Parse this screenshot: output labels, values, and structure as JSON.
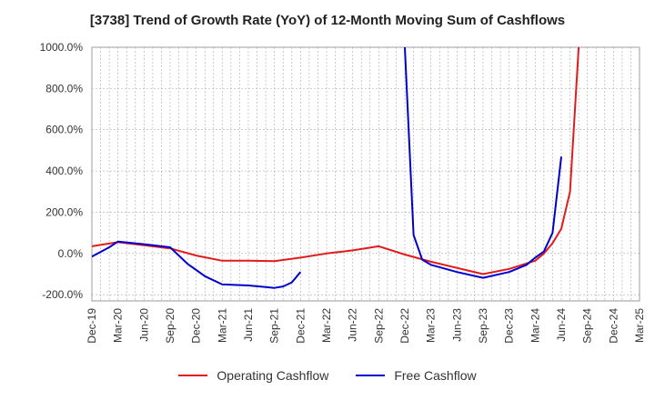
{
  "chart_data": {
    "type": "line",
    "title": "[3738]  Trend of Growth Rate (YoY) of 12-Month Moving Sum of Cashflows",
    "xlabel": "",
    "ylabel": "",
    "categories": [
      "Dec-19",
      "Mar-20",
      "Jun-20",
      "Sep-20",
      "Dec-20",
      "Mar-21",
      "Jun-21",
      "Sep-21",
      "Dec-21",
      "Mar-22",
      "Jun-22",
      "Sep-22",
      "Dec-22",
      "Mar-23",
      "Jun-23",
      "Sep-23",
      "Dec-23",
      "Mar-24",
      "Jun-24",
      "Sep-24",
      "Dec-24",
      "Mar-25"
    ],
    "ylim": [
      -230,
      1000
    ],
    "yticks": [
      -200,
      0,
      200,
      400,
      600,
      800,
      1000
    ],
    "ytick_labels": [
      "-200.0%",
      "0.0%",
      "200.0%",
      "400.0%",
      "600.0%",
      "800.0%",
      "1000.0%"
    ],
    "grid": true,
    "legend_position": "bottom",
    "series": [
      {
        "name": "Operating Cashflow",
        "color": "#e31a1c",
        "points": [
          [
            "Dec-19",
            35
          ],
          [
            "Mar-20",
            55
          ],
          [
            "Jun-20",
            40
          ],
          [
            "Sep-20",
            25
          ],
          [
            "Dec-20",
            -10
          ],
          [
            "Mar-21",
            -35
          ],
          [
            "Jun-21",
            -35
          ],
          [
            "Sep-21",
            -37
          ],
          [
            "Dec-21",
            -20
          ],
          [
            "Mar-22",
            0
          ],
          [
            "Jun-22",
            15
          ],
          [
            "Sep-22",
            35
          ],
          [
            "Dec-22",
            -5
          ],
          [
            "Mar-23",
            -40
          ],
          [
            "Jun-23",
            -70
          ],
          [
            "Sep-23",
            -100
          ],
          [
            "Dec-23",
            -75
          ],
          [
            "Mar-24",
            -35
          ],
          [
            "Apr-24",
            0
          ],
          [
            "May-24",
            50
          ],
          [
            "Jun-24",
            120
          ],
          [
            "Jul-24",
            300
          ],
          [
            "Aug-24",
            1000
          ]
        ]
      },
      {
        "name": "Free Cashflow",
        "color": "#0000cc",
        "points": [
          [
            "Dec-19",
            -15
          ],
          [
            "Feb-20",
            30
          ],
          [
            "Mar-20",
            58
          ],
          [
            "Jun-20",
            45
          ],
          [
            "Sep-20",
            30
          ],
          [
            "Oct-20",
            -10
          ],
          [
            "Nov-20",
            -50
          ],
          [
            "Dec-20",
            -80
          ],
          [
            "Jan-21",
            -110
          ],
          [
            "Mar-21",
            -150
          ],
          [
            "Jun-21",
            -155
          ],
          [
            "Aug-21",
            -163
          ],
          [
            "Sep-21",
            -167
          ],
          [
            "Oct-21",
            -160
          ],
          [
            "Nov-21",
            -140
          ],
          [
            "Dec-21",
            -90
          ]
        ]
      },
      {
        "name": "Free Cashflow",
        "color": "#0000cc",
        "points": [
          [
            "Dec-22",
            1000
          ],
          [
            "Jan-23",
            90
          ],
          [
            "Feb-23",
            -30
          ],
          [
            "Mar-23",
            -55
          ],
          [
            "Jun-23",
            -90
          ],
          [
            "Sep-23",
            -118
          ],
          [
            "Dec-23",
            -90
          ],
          [
            "Feb-24",
            -55
          ],
          [
            "Mar-24",
            -20
          ],
          [
            "Apr-24",
            10
          ],
          [
            "May-24",
            100
          ],
          [
            "Jun-24",
            470
          ]
        ]
      }
    ],
    "legend": [
      {
        "name": "Operating Cashflow",
        "color": "#e31a1c"
      },
      {
        "name": "Free Cashflow",
        "color": "#0000cc"
      }
    ]
  }
}
